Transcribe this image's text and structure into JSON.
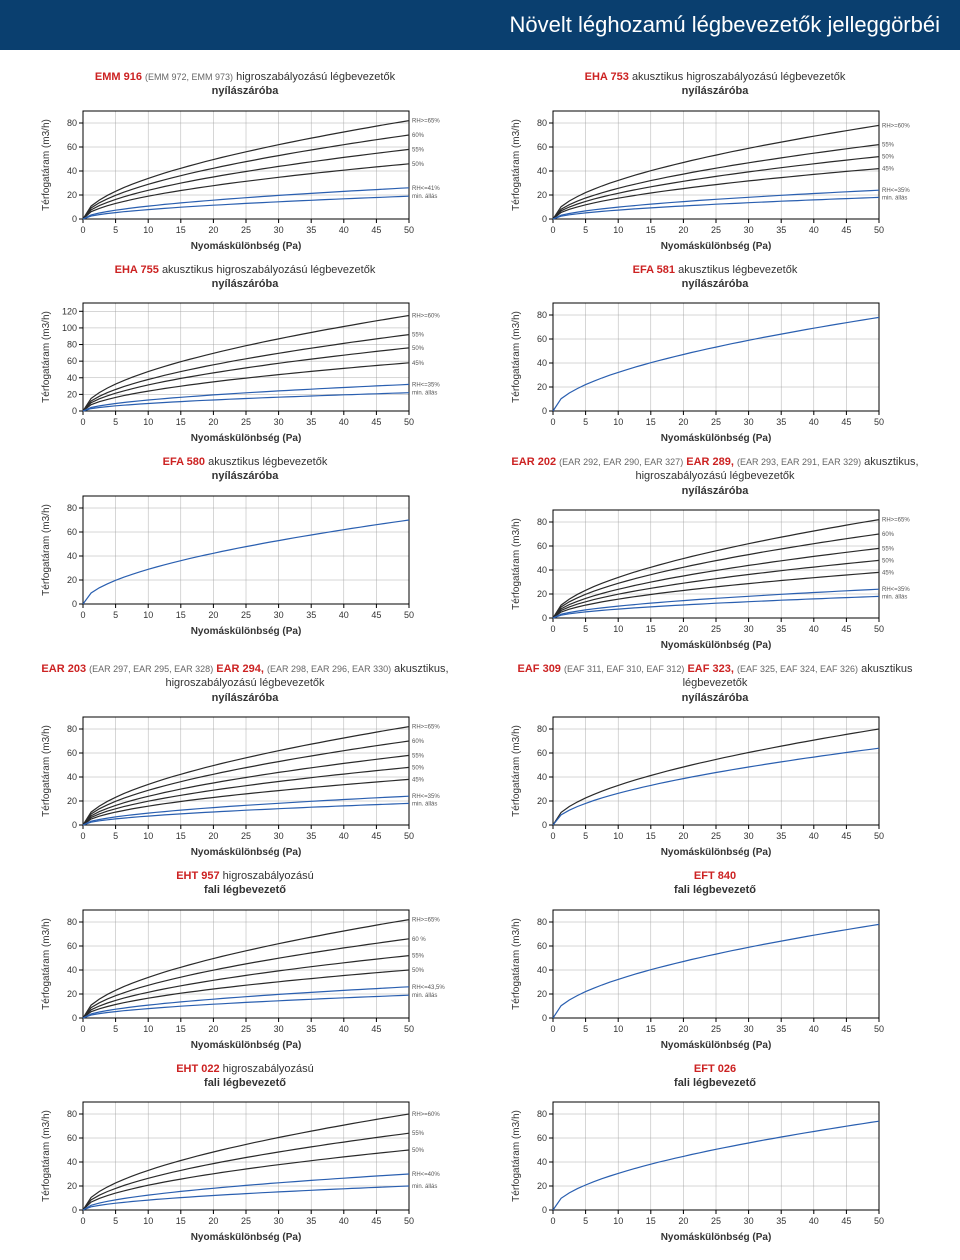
{
  "page_title": "Növelt léghozamú légbevezetők jelleggörbéi",
  "common": {
    "ylabel": "Térfogatáram (m3/h)",
    "xlabel": "Nyomáskülönbség (Pa)",
    "xticks": [
      0,
      5,
      10,
      15,
      20,
      25,
      30,
      35,
      40,
      45,
      50
    ],
    "grid_color": "#999999",
    "axis_color": "#000000"
  },
  "charts": [
    {
      "id": "emm916",
      "code": "EMM 916",
      "sub": "(EMM 972, EMM 973)",
      "desc": "higroszabályozású légbevezetők",
      "desc2": "nyílászáróba",
      "yticks": [
        0,
        20,
        40,
        60,
        80
      ],
      "ymax": 90,
      "curves": [
        {
          "color": "#2a2a2a",
          "end": 82,
          "label": "RH>=65%"
        },
        {
          "color": "#2a2a2a",
          "end": 70,
          "label": "60%"
        },
        {
          "color": "#2a2a2a",
          "end": 58,
          "label": "55%"
        },
        {
          "color": "#2a2a2a",
          "end": 46,
          "label": "50%"
        },
        {
          "color": "#2a5fb0",
          "end": 26,
          "label": "RH<=41%"
        },
        {
          "color": "#2a5fb0",
          "end": 19,
          "label": "min. állás"
        }
      ]
    },
    {
      "id": "eha753",
      "code": "EHA 753",
      "sub": "",
      "desc": "akusztikus higroszabályozású légbevezetők",
      "desc2": "nyílászáróba",
      "yticks": [
        0,
        20,
        40,
        60,
        80
      ],
      "ymax": 90,
      "curves": [
        {
          "color": "#2a2a2a",
          "end": 78,
          "label": "RH>=60%"
        },
        {
          "color": "#2a2a2a",
          "end": 62,
          "label": "55%"
        },
        {
          "color": "#2a2a2a",
          "end": 52,
          "label": "50%"
        },
        {
          "color": "#2a2a2a",
          "end": 42,
          "label": "45%"
        },
        {
          "color": "#2a5fb0",
          "end": 24,
          "label": "RH<=35%"
        },
        {
          "color": "#2a5fb0",
          "end": 18,
          "label": "min. állás"
        }
      ]
    },
    {
      "id": "eha755",
      "code": "EHA 755",
      "sub": "",
      "desc": "akusztikus higroszabályozású légbevezetők",
      "desc2": "nyílászáróba",
      "yticks": [
        0,
        20,
        40,
        60,
        80,
        100,
        120
      ],
      "ymax": 130,
      "curves": [
        {
          "color": "#2a2a2a",
          "end": 115,
          "label": "RH>=60%"
        },
        {
          "color": "#2a2a2a",
          "end": 92,
          "label": "55%"
        },
        {
          "color": "#2a2a2a",
          "end": 76,
          "label": "50%"
        },
        {
          "color": "#2a2a2a",
          "end": 58,
          "label": "45%"
        },
        {
          "color": "#2a5fb0",
          "end": 32,
          "label": "RH<=35%"
        },
        {
          "color": "#2a5fb0",
          "end": 22,
          "label": "min. állás"
        }
      ]
    },
    {
      "id": "efa581",
      "code": "EFA 581",
      "sub": "",
      "desc": "akusztikus légbevezetők",
      "desc2": "nyílászáróba",
      "yticks": [
        0,
        20,
        40,
        60,
        80
      ],
      "ymax": 90,
      "curves": [
        {
          "color": "#2a5fb0",
          "end": 78,
          "label": ""
        }
      ]
    },
    {
      "id": "efa580",
      "code": "EFA 580",
      "sub": "",
      "desc": "akusztikus légbevezetők",
      "desc2": "nyílászáróba",
      "yticks": [
        0,
        20,
        40,
        60,
        80
      ],
      "ymax": 90,
      "curves": [
        {
          "color": "#2a5fb0",
          "end": 70,
          "label": ""
        }
      ]
    },
    {
      "id": "ear202",
      "code": "EAR 202",
      "sub": "(EAR 292, EAR 290, EAR 327)",
      "code2": "EAR 289,",
      "sub2": "(EAR 293, EAR 291, EAR 329)",
      "desc": "akusztikus, higroszabályozású légbevezetők",
      "desc2": "nyílászáróba",
      "yticks": [
        0,
        20,
        40,
        60,
        80
      ],
      "ymax": 90,
      "curves": [
        {
          "color": "#2a2a2a",
          "end": 82,
          "label": "RH>=65%"
        },
        {
          "color": "#2a2a2a",
          "end": 70,
          "label": "60%"
        },
        {
          "color": "#2a2a2a",
          "end": 58,
          "label": "55%"
        },
        {
          "color": "#2a2a2a",
          "end": 48,
          "label": "50%"
        },
        {
          "color": "#2a2a2a",
          "end": 38,
          "label": "45%"
        },
        {
          "color": "#2a5fb0",
          "end": 24,
          "label": "RH<=35%"
        },
        {
          "color": "#2a5fb0",
          "end": 18,
          "label": "min. állás"
        }
      ]
    },
    {
      "id": "ear203",
      "code": "EAR 203",
      "sub": "(EAR 297, EAR 295, EAR 328)",
      "code2": "EAR 294,",
      "sub2": "(EAR 298, EAR 296, EAR 330)",
      "desc": "akusztikus, higroszabályozású légbevezetők",
      "desc2": "nyílászáróba",
      "yticks": [
        0,
        20,
        40,
        60,
        80
      ],
      "ymax": 90,
      "curves": [
        {
          "color": "#2a2a2a",
          "end": 82,
          "label": "RH>=65%"
        },
        {
          "color": "#2a2a2a",
          "end": 70,
          "label": "60%"
        },
        {
          "color": "#2a2a2a",
          "end": 58,
          "label": "55%"
        },
        {
          "color": "#2a2a2a",
          "end": 48,
          "label": "50%"
        },
        {
          "color": "#2a2a2a",
          "end": 38,
          "label": "45%"
        },
        {
          "color": "#2a5fb0",
          "end": 24,
          "label": "RH<=35%"
        },
        {
          "color": "#2a5fb0",
          "end": 18,
          "label": "min. állás"
        }
      ]
    },
    {
      "id": "eaf309",
      "code": "EAF 309",
      "sub": "(EAF 311, EAF 310, EAF 312)",
      "code2": "EAF 323,",
      "sub2": "(EAF 325, EAF 324, EAF 326)",
      "desc": "akusztikus légbevezetők",
      "desc2": "nyílászáróba",
      "yticks": [
        0,
        20,
        40,
        60,
        80
      ],
      "ymax": 90,
      "curves": [
        {
          "color": "#2a2a2a",
          "end": 80,
          "label": ""
        },
        {
          "color": "#2a5fb0",
          "end": 64,
          "label": ""
        }
      ]
    },
    {
      "id": "eht957",
      "code": "EHT 957",
      "sub": "",
      "desc": "higroszabályozású",
      "desc2": "fali légbevezető",
      "yticks": [
        0,
        20,
        40,
        60,
        80
      ],
      "ymax": 90,
      "curves": [
        {
          "color": "#2a2a2a",
          "end": 82,
          "label": "RH>=65%"
        },
        {
          "color": "#2a2a2a",
          "end": 66,
          "label": "60 %"
        },
        {
          "color": "#2a2a2a",
          "end": 52,
          "label": "55%"
        },
        {
          "color": "#2a2a2a",
          "end": 40,
          "label": "50%"
        },
        {
          "color": "#2a5fb0",
          "end": 26,
          "label": "RH<=43,5%"
        },
        {
          "color": "#2a5fb0",
          "end": 19,
          "label": "min. állás"
        }
      ]
    },
    {
      "id": "eft840",
      "code": "EFT 840",
      "sub": "",
      "desc": "",
      "desc2": "fali légbevezető",
      "yticks": [
        0,
        20,
        40,
        60,
        80
      ],
      "ymax": 90,
      "curves": [
        {
          "color": "#2a5fb0",
          "end": 78,
          "label": ""
        }
      ]
    },
    {
      "id": "eht022",
      "code": "EHT 022",
      "sub": "",
      "desc": "higroszabályozású",
      "desc2": "fali légbevezető",
      "yticks": [
        0,
        20,
        40,
        60,
        80
      ],
      "ymax": 90,
      "curves": [
        {
          "color": "#2a2a2a",
          "end": 80,
          "label": "RH>=60%"
        },
        {
          "color": "#2a2a2a",
          "end": 64,
          "label": "55%"
        },
        {
          "color": "#2a2a2a",
          "end": 50,
          "label": "50%"
        },
        {
          "color": "#2a5fb0",
          "end": 30,
          "label": "RH<=40%"
        },
        {
          "color": "#2a5fb0",
          "end": 20,
          "label": "min. állás"
        }
      ]
    },
    {
      "id": "eft026",
      "code": "EFT 026",
      "sub": "",
      "desc": "",
      "desc2": "fali légbevezető",
      "yticks": [
        0,
        20,
        40,
        60,
        80
      ],
      "ymax": 90,
      "curves": [
        {
          "color": "#2a5fb0",
          "end": 74,
          "label": ""
        }
      ]
    }
  ]
}
